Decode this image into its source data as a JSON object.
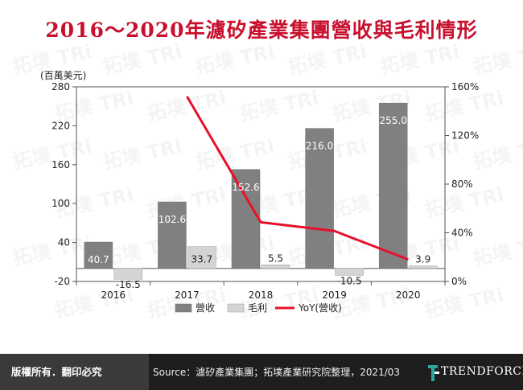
{
  "title": "2016～2020年濾矽產業集團營收與毛利情形",
  "chart_data": {
    "type": "bar",
    "categories": [
      "2016",
      "2017",
      "2018",
      "2019",
      "2020"
    ],
    "series": [
      {
        "name": "營收",
        "color": "#808080",
        "values": [
          40.7,
          102.6,
          152.6,
          216.0,
          255.0
        ],
        "labels": [
          "40.7",
          "102.6",
          "152.6",
          "216.0",
          "255.0"
        ]
      },
      {
        "name": "毛利",
        "color": "#d4d4d4",
        "values": [
          -16.5,
          33.7,
          5.5,
          -10.5,
          3.9
        ],
        "labels": [
          "-16.5",
          "33.7",
          "5.5",
          "-10.5",
          "3.9"
        ]
      }
    ],
    "line_series": {
      "name": "YoY(營收)",
      "color": "#e8102a",
      "x": [
        "2017",
        "2018",
        "2019",
        "2020"
      ],
      "values": [
        152.1,
        48.7,
        41.5,
        18.1
      ]
    },
    "y_left": {
      "label": "(百萬美元)",
      "ylim": [
        -20,
        280
      ],
      "ticks": [
        "-20",
        "40",
        "100",
        "160",
        "220",
        "280"
      ]
    },
    "y_right": {
      "ylim": [
        0,
        160
      ],
      "ticks": [
        "0%",
        "40%",
        "80%",
        "120%",
        "160%"
      ]
    },
    "legend_position": "bottom"
  },
  "watermark_text": "拓墣 TRi",
  "footer": {
    "copyright": "版權所有．翻印必究",
    "source": "Source：濾矽產業集團；拓墣產業研究院整理，2021/03",
    "brand": "TRENDFORCE"
  }
}
